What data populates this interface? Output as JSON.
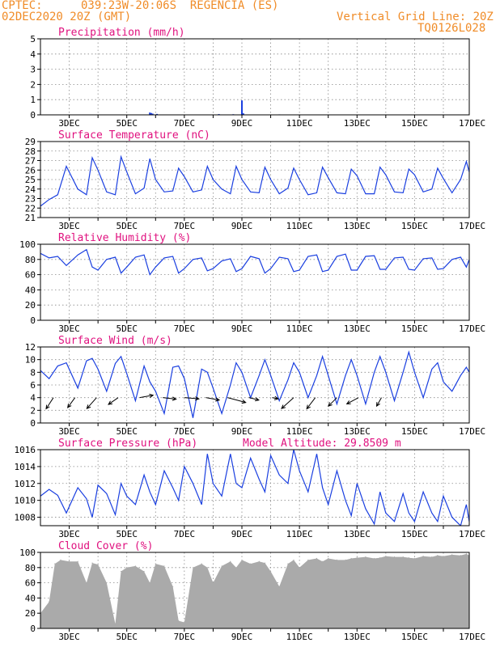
{
  "header": {
    "source": "CPTEC:",
    "location": "039:23W-20:06S  REGENCIA (ES)",
    "init": "02DEC2020 20Z (GMT)",
    "grid_note": "Vertical Grid Line: 20Z",
    "code": "TQ0126L028"
  },
  "colors": {
    "header": "#f08c28",
    "title": "#e0117f",
    "series": "#1a3fe0",
    "cloud": "#aaaaaa",
    "grid": "#888888"
  },
  "chart_data": [
    {
      "id": "precip",
      "type": "bar",
      "title": "Precipitation (mm/h)",
      "ylim": [
        0,
        5
      ],
      "yticks": [
        0,
        1,
        2,
        3,
        4,
        5
      ],
      "xlim": [
        0,
        14.9
      ],
      "day_ticks": [
        1,
        2,
        3,
        4,
        5,
        6,
        7,
        8,
        9,
        10,
        11,
        12,
        13,
        14
      ],
      "x_labels": [
        "3DEC",
        "5DEC",
        "7DEC",
        "9DEC",
        "11DEC",
        "13DEC",
        "15DEC",
        "17DEC"
      ],
      "bars": [
        [
          3.8,
          0.15
        ],
        [
          3.85,
          0.12
        ],
        [
          3.9,
          0.08
        ],
        [
          4.05,
          0.06
        ],
        [
          6.2,
          0.05
        ],
        [
          6.7,
          0.04
        ],
        [
          7.0,
          0.95
        ],
        [
          7.05,
          0.1
        ],
        [
          8.3,
          0.03
        ],
        [
          11.4,
          0.02
        ],
        [
          12.9,
          0.02
        ]
      ]
    },
    {
      "id": "temp",
      "type": "line",
      "title": "Surface Temperature (nC)",
      "ylim": [
        21,
        29
      ],
      "yticks": [
        21,
        22,
        23,
        24,
        25,
        26,
        27,
        28,
        29
      ],
      "xlim": [
        0,
        14.9
      ],
      "day_ticks": [
        1,
        2,
        3,
        4,
        5,
        6,
        7,
        8,
        9,
        10,
        11,
        12,
        13,
        14
      ],
      "x_labels": [
        "3DEC",
        "5DEC",
        "7DEC",
        "9DEC",
        "11DEC",
        "13DEC",
        "15DEC",
        "17DEC"
      ],
      "x": [
        0,
        0.3,
        0.6,
        0.9,
        1.3,
        1.6,
        1.8,
        2.0,
        2.3,
        2.6,
        2.8,
        3.0,
        3.3,
        3.6,
        3.8,
        4.0,
        4.3,
        4.6,
        4.8,
        5.0,
        5.3,
        5.6,
        5.8,
        6.0,
        6.3,
        6.6,
        6.8,
        7.0,
        7.3,
        7.6,
        7.8,
        8.0,
        8.3,
        8.6,
        8.8,
        9.0,
        9.3,
        9.6,
        9.8,
        10.0,
        10.3,
        10.6,
        10.8,
        11.0,
        11.3,
        11.6,
        11.8,
        12.0,
        12.3,
        12.6,
        12.8,
        13.0,
        13.3,
        13.6,
        13.8,
        14.0,
        14.3,
        14.6,
        14.8,
        14.9
      ],
      "y": [
        22.2,
        22.9,
        23.4,
        26.4,
        24.0,
        23.4,
        27.3,
        26.0,
        23.7,
        23.4,
        27.4,
        25.8,
        23.5,
        24.1,
        27.2,
        25.0,
        23.7,
        23.8,
        26.2,
        25.3,
        23.7,
        23.9,
        26.4,
        25.0,
        24.0,
        23.5,
        26.4,
        25.0,
        23.7,
        23.6,
        26.3,
        25.0,
        23.5,
        24.1,
        26.2,
        25.0,
        23.4,
        23.6,
        26.3,
        25.2,
        23.6,
        23.5,
        26.1,
        25.4,
        23.5,
        23.5,
        26.3,
        25.5,
        23.7,
        23.6,
        26.1,
        25.5,
        23.7,
        24.0,
        26.2,
        25.1,
        23.6,
        25.0,
        26.9,
        25.8
      ]
    },
    {
      "id": "rh",
      "type": "line",
      "title": "Relative Humidity (%)",
      "ylim": [
        0,
        100
      ],
      "yticks": [
        0,
        20,
        40,
        60,
        80,
        100
      ],
      "xlim": [
        0,
        14.9
      ],
      "day_ticks": [
        1,
        2,
        3,
        4,
        5,
        6,
        7,
        8,
        9,
        10,
        11,
        12,
        13,
        14
      ],
      "x_labels": [
        "3DEC",
        "5DEC",
        "7DEC",
        "9DEC",
        "11DEC",
        "13DEC",
        "15DEC",
        "17DEC"
      ],
      "x": [
        0,
        0.3,
        0.6,
        0.9,
        1.3,
        1.6,
        1.8,
        2.0,
        2.3,
        2.6,
        2.8,
        3.0,
        3.3,
        3.6,
        3.8,
        4.0,
        4.3,
        4.6,
        4.8,
        5.0,
        5.3,
        5.6,
        5.8,
        6.0,
        6.3,
        6.6,
        6.8,
        7.0,
        7.3,
        7.6,
        7.8,
        8.0,
        8.3,
        8.6,
        8.8,
        9.0,
        9.3,
        9.6,
        9.8,
        10.0,
        10.3,
        10.6,
        10.8,
        11.0,
        11.3,
        11.6,
        11.8,
        12.0,
        12.3,
        12.6,
        12.8,
        13.0,
        13.3,
        13.6,
        13.8,
        14.0,
        14.3,
        14.6,
        14.8,
        14.9
      ],
      "y": [
        88,
        82,
        84,
        72,
        86,
        93,
        70,
        66,
        80,
        83,
        62,
        70,
        83,
        86,
        60,
        70,
        82,
        84,
        62,
        68,
        80,
        82,
        65,
        68,
        78,
        81,
        64,
        68,
        84,
        81,
        62,
        68,
        83,
        81,
        64,
        66,
        84,
        86,
        64,
        66,
        84,
        87,
        66,
        66,
        84,
        85,
        67,
        67,
        82,
        83,
        67,
        66,
        81,
        82,
        67,
        68,
        80,
        83,
        70,
        80
      ]
    },
    {
      "id": "wind",
      "type": "line",
      "title": "Surface Wind (m/s)",
      "ylim": [
        0,
        12
      ],
      "yticks": [
        0,
        2,
        4,
        6,
        8,
        10,
        12
      ],
      "xlim": [
        0,
        14.9
      ],
      "day_ticks": [
        1,
        2,
        3,
        4,
        5,
        6,
        7,
        8,
        9,
        10,
        11,
        12,
        13,
        14
      ],
      "x_labels": [
        "3DEC",
        "5DEC",
        "7DEC",
        "9DEC",
        "11DEC",
        "13DEC",
        "15DEC",
        "17DEC"
      ],
      "x": [
        0,
        0.3,
        0.6,
        0.9,
        1.3,
        1.6,
        1.8,
        2.0,
        2.3,
        2.6,
        2.8,
        3.0,
        3.3,
        3.6,
        3.8,
        4.0,
        4.3,
        4.6,
        4.8,
        5.0,
        5.3,
        5.6,
        5.8,
        6.0,
        6.3,
        6.6,
        6.8,
        7.0,
        7.3,
        7.6,
        7.8,
        8.0,
        8.3,
        8.6,
        8.8,
        9.0,
        9.3,
        9.6,
        9.8,
        10.0,
        10.3,
        10.6,
        10.8,
        11.0,
        11.3,
        11.6,
        11.8,
        12.0,
        12.3,
        12.6,
        12.8,
        13.0,
        13.3,
        13.6,
        13.8,
        14.0,
        14.3,
        14.6,
        14.8,
        14.9
      ],
      "y": [
        8.3,
        7.0,
        9.0,
        9.5,
        5.5,
        9.8,
        10.2,
        8.5,
        5.0,
        9.4,
        10.5,
        7.8,
        3.5,
        9.0,
        6.5,
        5.0,
        1.5,
        8.8,
        9.0,
        7.0,
        0.8,
        8.5,
        8.0,
        5.5,
        1.5,
        6.0,
        9.5,
        8.0,
        4.0,
        7.5,
        10.0,
        7.5,
        3.5,
        6.8,
        9.5,
        8.0,
        4.0,
        7.5,
        10.5,
        7.5,
        3.0,
        7.5,
        10.0,
        7.5,
        3.0,
        8.0,
        10.5,
        8.0,
        3.5,
        8.0,
        11.2,
        8.0,
        4.0,
        8.5,
        9.5,
        6.5,
        5.0,
        7.5,
        8.8,
        8.0
      ]
    },
    {
      "id": "pres",
      "type": "line",
      "title": "Surface Pressure (hPa)",
      "annotation": "Model Altitude: 29.8509 m",
      "ylim": [
        1007,
        1016
      ],
      "yticks": [
        1008,
        1010,
        1012,
        1014,
        1016
      ],
      "xlim": [
        0,
        14.9
      ],
      "day_ticks": [
        1,
        2,
        3,
        4,
        5,
        6,
        7,
        8,
        9,
        10,
        11,
        12,
        13,
        14
      ],
      "x_labels": [
        "3DEC",
        "5DEC",
        "7DEC",
        "9DEC",
        "11DEC",
        "13DEC",
        "15DEC",
        "17DEC"
      ],
      "x": [
        0,
        0.3,
        0.6,
        0.9,
        1.3,
        1.6,
        1.8,
        2.0,
        2.3,
        2.6,
        2.8,
        3.0,
        3.3,
        3.6,
        3.8,
        4.0,
        4.3,
        4.6,
        4.8,
        5.0,
        5.3,
        5.6,
        5.8,
        6.0,
        6.3,
        6.6,
        6.8,
        7.0,
        7.3,
        7.6,
        7.8,
        8.0,
        8.3,
        8.6,
        8.8,
        9.0,
        9.3,
        9.6,
        9.8,
        10.0,
        10.3,
        10.6,
        10.8,
        11.0,
        11.3,
        11.6,
        11.8,
        12.0,
        12.3,
        12.6,
        12.8,
        13.0,
        13.3,
        13.6,
        13.8,
        14.0,
        14.3,
        14.6,
        14.8,
        14.9
      ],
      "y": [
        1010.5,
        1011.3,
        1010.6,
        1008.5,
        1011.5,
        1010.2,
        1008.0,
        1011.8,
        1010.8,
        1008.3,
        1012.0,
        1010.5,
        1009.5,
        1013.0,
        1011.0,
        1009.5,
        1013.5,
        1011.5,
        1010.0,
        1014.0,
        1012.0,
        1009.5,
        1015.5,
        1012.0,
        1010.5,
        1015.5,
        1012.0,
        1011.5,
        1015.0,
        1012.5,
        1011.0,
        1015.3,
        1013.0,
        1012.0,
        1016.0,
        1013.5,
        1011.0,
        1015.5,
        1011.5,
        1009.5,
        1013.5,
        1010.0,
        1008.2,
        1012.0,
        1009.0,
        1007.2,
        1011.0,
        1008.5,
        1007.5,
        1010.8,
        1008.5,
        1007.5,
        1011.0,
        1008.5,
        1007.5,
        1010.5,
        1008.0,
        1007.0,
        1009.5,
        1007.5
      ]
    },
    {
      "id": "cloud",
      "type": "bar",
      "title": "Cloud Cover (%)",
      "ylim": [
        0,
        100
      ],
      "yticks": [
        0,
        20,
        40,
        60,
        80,
        100
      ],
      "xlim": [
        0,
        14.9
      ],
      "day_ticks": [
        1,
        2,
        3,
        4,
        5,
        6,
        7,
        8,
        9,
        10,
        11,
        12,
        13,
        14
      ],
      "x_labels": [
        "3DEC",
        "5DEC",
        "7DEC",
        "9DEC",
        "11DEC",
        "13DEC",
        "15DEC",
        "17DEC"
      ],
      "x": [
        0,
        0.3,
        0.5,
        0.7,
        1.0,
        1.3,
        1.6,
        1.8,
        2.0,
        2.3,
        2.6,
        2.8,
        3.0,
        3.3,
        3.6,
        3.8,
        4.0,
        4.3,
        4.6,
        4.8,
        5.0,
        5.3,
        5.6,
        5.8,
        6.0,
        6.3,
        6.6,
        6.8,
        7.0,
        7.3,
        7.6,
        7.8,
        8.0,
        8.3,
        8.6,
        8.8,
        9.0,
        9.3,
        9.6,
        9.8,
        10.0,
        10.3,
        10.6,
        10.8,
        11.0,
        11.3,
        11.6,
        11.8,
        12.0,
        12.3,
        12.6,
        12.8,
        13.0,
        13.3,
        13.6,
        13.8,
        14.0,
        14.3,
        14.6,
        14.8,
        14.9
      ],
      "y": [
        20,
        35,
        85,
        90,
        88,
        88,
        60,
        86,
        84,
        60,
        6,
        75,
        80,
        82,
        75,
        60,
        85,
        82,
        55,
        10,
        8,
        80,
        85,
        80,
        60,
        82,
        88,
        80,
        90,
        85,
        88,
        86,
        75,
        55,
        85,
        90,
        80,
        90,
        92,
        88,
        92,
        90,
        90,
        92,
        93,
        94,
        92,
        93,
        95,
        94,
        94,
        93,
        92,
        95,
        94,
        96,
        95,
        97,
        96,
        98,
        96
      ]
    }
  ],
  "wind_vectors": {
    "x": [
      0.45,
      1.2,
      1.95,
      2.7,
      3.45,
      4.25,
      5.0,
      5.75,
      6.5,
      7.25,
      8.05,
      8.8,
      9.55,
      10.3,
      11.05,
      11.85
    ],
    "u": [
      3.0,
      3.0,
      4.0,
      4.0,
      -5.5,
      -5.5,
      -6.0,
      -5.5,
      -7.5,
      -4.0,
      -2.5,
      5.0,
      3.5,
      3.5,
      4.8,
      2.0
    ],
    "v": [
      4.6,
      4.1,
      4.5,
      2.8,
      -1.0,
      0.6,
      0.5,
      1.0,
      2.0,
      1.0,
      0.5,
      4.5,
      4.6,
      3.5,
      2.6,
      3.5
    ]
  }
}
